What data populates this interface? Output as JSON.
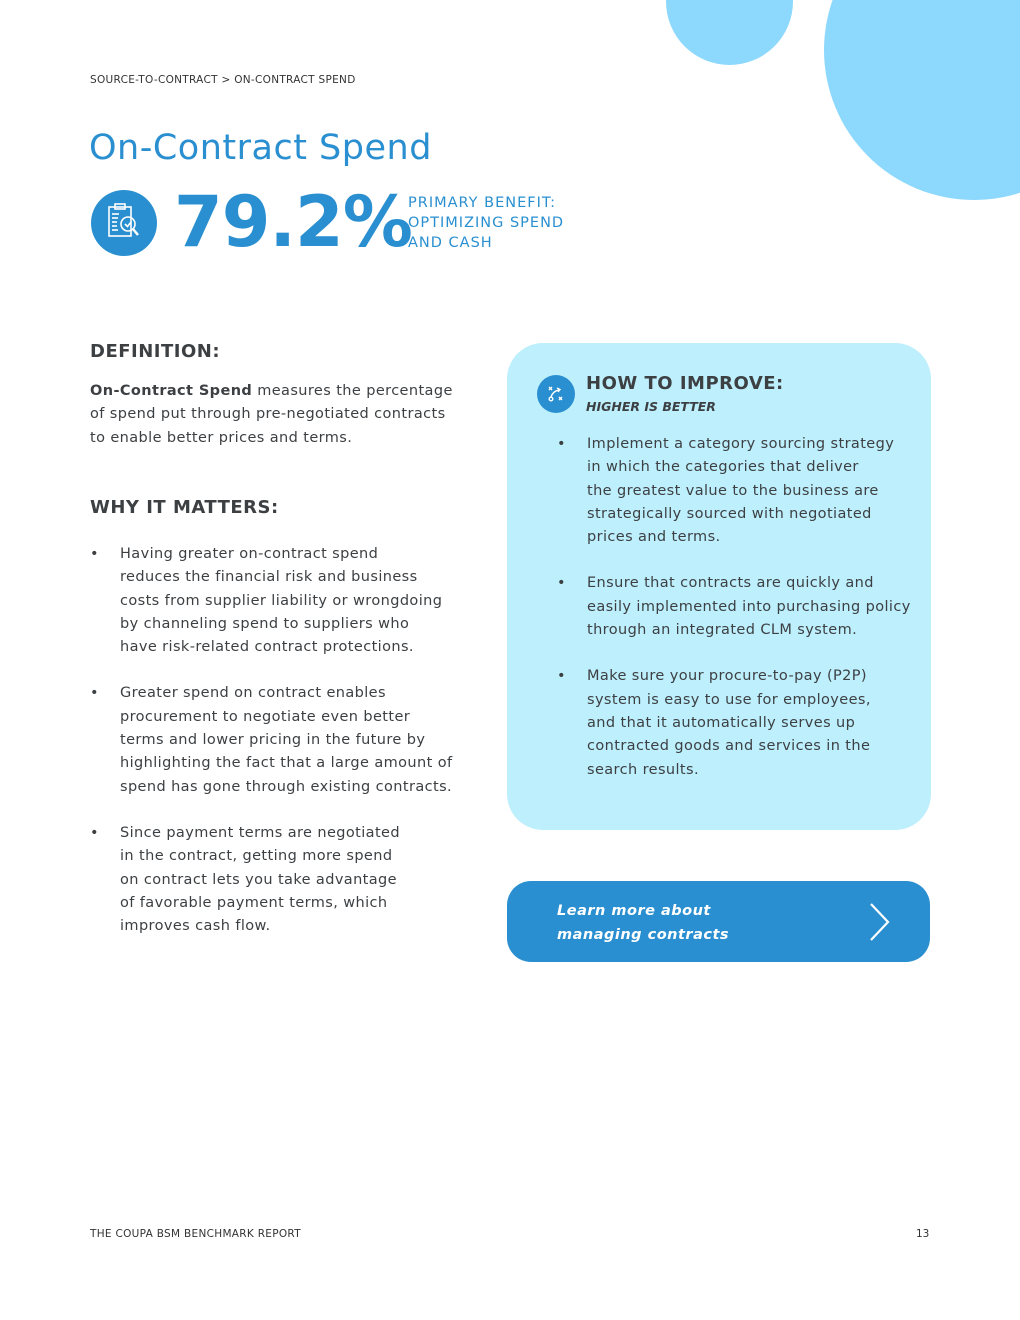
{
  "breadcrumb": "SOURCE-TO-CONTRACT > ON-CONTRACT SPEND",
  "title": "On-Contract Spend",
  "metric": "79.2%",
  "benefit": [
    "PRIMARY BENEFIT:",
    "OPTIMIZING SPEND",
    "AND CASH"
  ],
  "definition": {
    "heading": "DEFINITION:",
    "term": "On-Contract Spend",
    "lines": [
      " measures the percentage",
      "of spend put through pre-negotiated contracts",
      "to enable better prices and terms."
    ]
  },
  "why": {
    "heading": "WHY IT MATTERS:",
    "bullets": [
      [
        "Having greater on-contract spend",
        "reduces the financial risk and business",
        "costs from supplier liability or wrongdoing",
        "by channeling spend to suppliers who",
        "have risk-related contract protections."
      ],
      [
        "Greater spend on contract enables",
        "procurement to negotiate even better",
        "terms and lower pricing in the future by",
        "highlighting the fact that a large amount of",
        "spend has gone through existing contracts."
      ],
      [
        "Since payment terms are negotiated",
        "in the contract, getting more spend",
        "on contract lets you take advantage",
        "of favorable payment terms, which",
        "improves cash flow."
      ]
    ]
  },
  "improve": {
    "heading": "HOW TO IMPROVE:",
    "subheading": "HIGHER IS BETTER",
    "bullets": [
      [
        "Implement a category sourcing strategy",
        "in which the categories that deliver",
        "the greatest value to the business are",
        "strategically sourced with negotiated",
        "prices and terms."
      ],
      [
        "Ensure that contracts are quickly and",
        "easily implemented into purchasing policy",
        "through an integrated CLM system."
      ],
      [
        "Make sure your procure-to-pay (P2P)",
        "system is easy to use for employees,",
        "and that it automatically serves up",
        "contracted goods and services in the",
        "search results."
      ]
    ]
  },
  "cta": [
    "Learn more about",
    "managing contracts"
  ],
  "footer": "THE COUPA BSM BENCHMARK REPORT",
  "page_number": "13",
  "colors": {
    "accent": "#2a8fd0",
    "card": "#bdeffd",
    "decor": "#8dd8fd"
  }
}
